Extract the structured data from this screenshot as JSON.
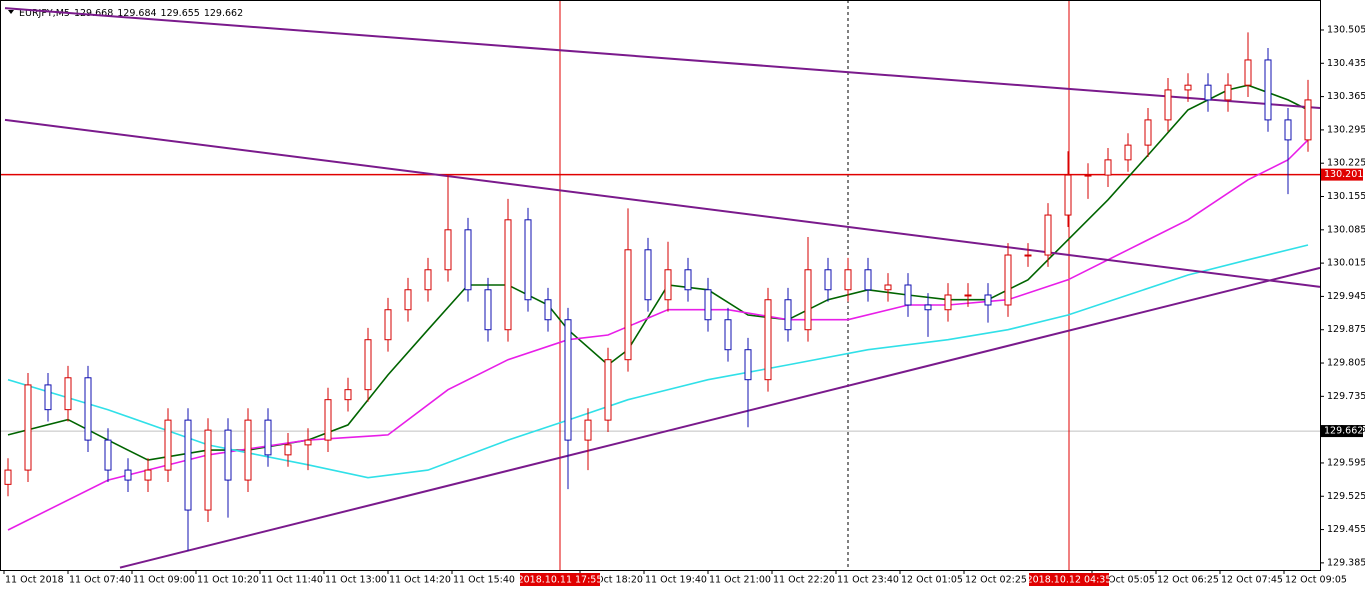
{
  "chart_data": {
    "type": "candlestick",
    "symbol": "EURJPY,M5",
    "quote": [
      129.668,
      129.684,
      129.655,
      129.662
    ],
    "up_color": "#d40000",
    "down_color": "#1010b0",
    "xlim": [
      -0.4,
      65.6
    ],
    "ylim": [
      129.37,
      130.568
    ],
    "yticks": [
      130.505,
      130.435,
      130.365,
      130.295,
      130.225,
      130.155,
      130.085,
      130.015,
      129.945,
      129.875,
      129.805,
      129.735,
      129.665,
      129.595,
      129.525,
      129.455,
      129.385
    ],
    "xticks": [
      {
        "value": -0.2,
        "label": "11 Oct 2018"
      },
      {
        "value": 3,
        "label": "11 Oct 07:40"
      },
      {
        "value": 6.2,
        "label": "11 Oct 09:00"
      },
      {
        "value": 9.4,
        "label": "11 Oct 10:20"
      },
      {
        "value": 12.6,
        "label": "11 Oct 11:40"
      },
      {
        "value": 15.8,
        "label": "11 Oct 13:00"
      },
      {
        "value": 19,
        "label": "11 Oct 14:20"
      },
      {
        "value": 22.2,
        "label": "11 Oct 15:40"
      },
      {
        "value": 28.6,
        "label": "11 Oct 18:20"
      },
      {
        "value": 31.8,
        "label": "11 Oct 19:40"
      },
      {
        "value": 35,
        "label": "11 Oct 21:00"
      },
      {
        "value": 38.2,
        "label": "11 Oct 22:20"
      },
      {
        "value": 41.4,
        "label": "11 Oct 23:40"
      },
      {
        "value": 44.6,
        "label": "12 Oct 01:05"
      },
      {
        "value": 47.8,
        "label": "12 Oct 02:25"
      },
      {
        "value": 54.2,
        "label": "12 Oct 05:05"
      },
      {
        "value": 57.4,
        "label": "12 Oct 06:25"
      },
      {
        "value": 60.6,
        "label": "12 Oct 07:45"
      },
      {
        "value": 63.8,
        "label": "12 Oct 09:05"
      }
    ],
    "x": [
      0,
      1,
      2,
      3,
      4,
      5,
      6,
      7,
      8,
      9,
      10,
      11,
      12,
      13,
      14,
      15,
      16,
      17,
      18,
      19,
      20,
      21,
      22,
      23,
      24,
      25,
      26,
      27,
      28,
      29,
      30,
      31,
      32,
      33,
      34,
      35,
      36,
      37,
      38,
      39,
      40,
      41,
      42,
      43,
      44,
      45,
      46,
      47,
      48,
      49,
      50,
      51,
      52,
      53,
      54,
      55,
      56,
      57,
      58,
      59,
      60,
      61,
      62,
      63,
      64,
      65
    ],
    "open": [
      129.55,
      129.58,
      129.759,
      129.707,
      129.774,
      129.643,
      129.58,
      129.559,
      129.58,
      129.685,
      129.496,
      129.664,
      129.559,
      129.685,
      129.612,
      129.633,
      129.643,
      129.728,
      129.749,
      129.854,
      129.917,
      129.959,
      130.001,
      130.085,
      129.959,
      129.875,
      130.106,
      129.938,
      129.896,
      129.643,
      129.685,
      129.812,
      130.043,
      129.938,
      130.001,
      129.959,
      129.896,
      129.833,
      129.77,
      129.938,
      129.875,
      130.001,
      129.959,
      130.001,
      129.959,
      129.969,
      129.927,
      129.917,
      129.948,
      129.948,
      129.927,
      130.032,
      130.032,
      130.116,
      130.2,
      130.2,
      130.232,
      130.263,
      130.316,
      130.379,
      130.389,
      130.358,
      130.389,
      130.442,
      130.316,
      130.274
    ],
    "high": [
      129.605,
      129.784,
      129.784,
      129.799,
      129.799,
      129.668,
      129.605,
      129.605,
      129.71,
      129.71,
      129.689,
      129.689,
      129.71,
      129.71,
      129.658,
      129.668,
      129.753,
      129.774,
      129.879,
      129.942,
      129.984,
      130.026,
      130.2,
      130.11,
      129.984,
      130.15,
      130.131,
      129.963,
      129.921,
      129.71,
      129.837,
      130.13,
      130.068,
      130.06,
      130.026,
      129.984,
      129.921,
      129.858,
      129.963,
      129.963,
      130.07,
      130.026,
      130.026,
      130.026,
      129.994,
      129.994,
      129.952,
      129.973,
      129.973,
      129.973,
      130.057,
      130.057,
      130.141,
      130.25,
      130.225,
      130.257,
      130.288,
      130.341,
      130.404,
      130.414,
      130.414,
      130.414,
      130.5,
      130.467,
      130.341,
      130.4
    ],
    "low": [
      129.525,
      129.555,
      129.682,
      129.682,
      129.618,
      129.555,
      129.534,
      129.534,
      129.555,
      129.41,
      129.471,
      129.48,
      129.534,
      129.587,
      129.587,
      129.58,
      129.618,
      129.703,
      129.724,
      129.829,
      129.892,
      129.934,
      129.976,
      129.934,
      129.85,
      129.85,
      129.913,
      129.871,
      129.54,
      129.58,
      129.66,
      129.787,
      129.913,
      129.913,
      129.934,
      129.871,
      129.808,
      129.67,
      129.745,
      129.85,
      129.85,
      129.934,
      129.934,
      129.934,
      129.934,
      129.902,
      129.86,
      129.892,
      129.923,
      129.89,
      129.902,
      130.007,
      130.007,
      130.091,
      130.15,
      130.175,
      130.207,
      130.238,
      130.291,
      130.354,
      130.333,
      130.333,
      130.364,
      130.291,
      130.16,
      130.249
    ],
    "close": [
      129.58,
      129.759,
      129.707,
      129.774,
      129.643,
      129.58,
      129.559,
      129.58,
      129.685,
      129.496,
      129.664,
      129.559,
      129.685,
      129.612,
      129.633,
      129.643,
      129.728,
      129.749,
      129.854,
      129.917,
      129.959,
      130.001,
      130.085,
      129.959,
      129.875,
      130.106,
      129.938,
      129.896,
      129.643,
      129.685,
      129.812,
      130.043,
      129.938,
      130.001,
      129.959,
      129.896,
      129.833,
      129.77,
      129.938,
      129.875,
      130.001,
      129.959,
      130.001,
      129.959,
      129.969,
      129.927,
      129.917,
      129.948,
      129.948,
      129.927,
      130.032,
      130.032,
      130.116,
      130.2,
      130.2,
      130.232,
      130.263,
      130.316,
      130.379,
      130.389,
      130.358,
      130.389,
      130.442,
      130.316,
      130.274,
      130.358
    ],
    "lines": [
      {
        "color": "#006400",
        "x": [
          0,
          3,
          5,
          7,
          10,
          12,
          15,
          17,
          19,
          21,
          23,
          25,
          27,
          28,
          30,
          31,
          33,
          35,
          37,
          39,
          41,
          43,
          45,
          47,
          49,
          51,
          53,
          55,
          57,
          59,
          61,
          62,
          64,
          65
        ],
        "values": [
          129.654,
          129.686,
          129.643,
          129.601,
          129.622,
          129.622,
          129.643,
          129.675,
          129.78,
          129.875,
          129.969,
          129.969,
          129.927,
          129.875,
          129.801,
          129.833,
          129.969,
          129.959,
          129.906,
          129.896,
          129.938,
          129.959,
          129.948,
          129.938,
          129.938,
          129.98,
          130.064,
          130.148,
          130.242,
          130.337,
          130.379,
          130.389,
          130.358,
          130.337
        ]
      },
      {
        "color": "#e81ee8",
        "x": [
          0,
          5,
          10,
          15,
          19,
          22,
          25,
          28,
          30,
          33,
          36,
          39,
          42,
          45,
          47,
          50,
          53,
          56,
          59,
          62,
          64,
          65
        ],
        "values": [
          129.454,
          129.559,
          129.612,
          129.643,
          129.654,
          129.749,
          129.812,
          129.854,
          129.864,
          129.917,
          129.917,
          129.896,
          129.896,
          129.927,
          129.927,
          129.938,
          129.98,
          130.043,
          130.106,
          130.19,
          130.232,
          130.274
        ]
      },
      {
        "color": "#30e0e8",
        "x": [
          0,
          5,
          10,
          15,
          18,
          21,
          25,
          28,
          31,
          35,
          39,
          43,
          47,
          50,
          53,
          56,
          59,
          62,
          65
        ],
        "values": [
          129.77,
          129.707,
          129.633,
          129.591,
          129.564,
          129.58,
          129.643,
          129.685,
          129.728,
          129.77,
          129.801,
          129.833,
          129.854,
          129.875,
          129.906,
          129.948,
          129.99,
          130.022,
          130.053
        ]
      }
    ],
    "trendlines": [
      {
        "color": "#7a1a8c",
        "x": [
          -0.15,
          65.6
        ],
        "values": [
          130.551,
          130.341
        ]
      },
      {
        "color": "#7a1a8c",
        "x": [
          -0.15,
          65.6
        ],
        "values": [
          130.316,
          129.965
        ]
      },
      {
        "color": "#7a1a8c",
        "x": [
          5.6,
          65.6
        ],
        "values": [
          129.375,
          130.005
        ]
      }
    ],
    "hlines": [
      {
        "value": 130.201,
        "color": "#e00000"
      },
      {
        "value": 129.662,
        "color": "#c0c0c0"
      }
    ],
    "vlines": [
      {
        "value": 27.6,
        "label": "2018.10.11 17:55",
        "color": "#e00000"
      },
      {
        "value": 53.05,
        "label": "2018.10.12 04:35",
        "color": "#e00000"
      }
    ],
    "separators": [
      42
    ]
  }
}
